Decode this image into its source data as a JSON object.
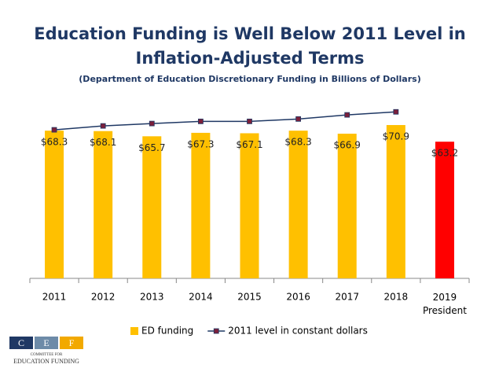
{
  "chart_data": {
    "type": "bar",
    "title": [
      "Education Funding is Well Below 2011 Level in",
      "Inflation-Adjusted Terms"
    ],
    "subtitle": "(Department of Education Discretionary Funding in Billions of Dollars)",
    "categories": [
      "2011",
      "2012",
      "2013",
      "2014",
      "2015",
      "2016",
      "2017",
      "2018",
      "2019\nPresident"
    ],
    "series": [
      {
        "name": "ED funding",
        "type": "bar",
        "color": "#ffc000",
        "colors": [
          "#ffc000",
          "#ffc000",
          "#ffc000",
          "#ffc000",
          "#ffc000",
          "#ffc000",
          "#ffc000",
          "#ffc000",
          "#ff0000"
        ],
        "values": [
          68.3,
          68.1,
          65.7,
          67.3,
          67.1,
          68.3,
          66.9,
          70.9,
          63.2
        ],
        "value_labels": [
          "$68.3",
          "$68.1",
          "$65.7",
          "$67.3",
          "$67.1",
          "$68.3",
          "$66.9",
          "$70.9",
          "$63.2"
        ]
      },
      {
        "name": "2011 level in constant dollars",
        "type": "line",
        "color": "#1f3864",
        "marker_color": "#7b1f3a",
        "values": [
          68.7,
          70.5,
          71.6,
          72.6,
          72.6,
          73.7,
          75.6,
          77.0,
          null
        ]
      }
    ],
    "ylim": [
      0,
      80
    ]
  },
  "logo": {
    "letters": [
      "C",
      "E",
      "F"
    ],
    "text": [
      "COMMITTEE FOR",
      "EDUCATION FUNDING"
    ]
  }
}
